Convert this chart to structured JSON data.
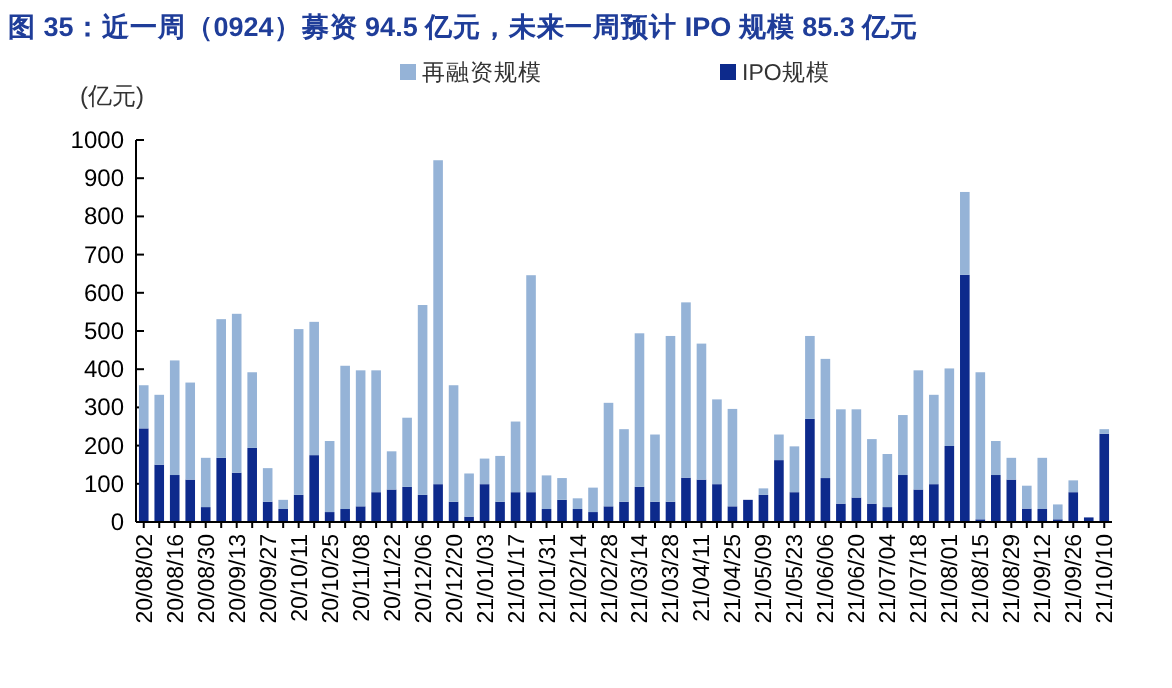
{
  "chart_data": {
    "type": "bar",
    "stacked": true,
    "title": "图 35：近一周（0924）募资 94.5 亿元，未来一周预计 IPO 规模 85.3 亿元",
    "ylabel": "(亿元)",
    "categories": [
      "20/08/02",
      null,
      "20/08/16",
      null,
      "20/08/30",
      null,
      "20/09/13",
      null,
      "20/09/27",
      null,
      "20/10/11",
      null,
      "20/10/25",
      null,
      "20/11/08",
      null,
      "20/11/22",
      null,
      "20/12/06",
      null,
      "20/12/20",
      null,
      "21/01/03",
      null,
      "21/01/17",
      null,
      "21/01/31",
      null,
      "21/02/14",
      null,
      "21/02/28",
      null,
      "21/03/14",
      null,
      "21/03/28",
      null,
      "21/04/11",
      null,
      "21/04/25",
      null,
      "21/05/09",
      null,
      "21/05/23",
      null,
      "21/06/06",
      null,
      "21/06/20",
      null,
      "21/07/04",
      null,
      "21/07/18",
      null,
      "21/08/01",
      null,
      "21/08/15",
      null,
      "21/08/29",
      null,
      "21/09/12",
      null,
      "21/09/26",
      null,
      "21/10/10"
    ],
    "series": [
      {
        "name": "IPO规模",
        "color": "#0d2a8c",
        "values": [
          245,
          150,
          123,
          111,
          39,
          168,
          129,
          194,
          53,
          34,
          71,
          175,
          26,
          34,
          41,
          78,
          85,
          92,
          71,
          99,
          53,
          14,
          99,
          53,
          78,
          78,
          34,
          58,
          34,
          26,
          41,
          53,
          92,
          53,
          53,
          116,
          111,
          99,
          41,
          58,
          71,
          162,
          78,
          270,
          115,
          48,
          64,
          48,
          39,
          123,
          85,
          99,
          199,
          647,
          7,
          123,
          111,
          35,
          34,
          7,
          78,
          12,
          231
        ]
      },
      {
        "name": "再融资规模",
        "color": "#95b3d7",
        "values": [
          113,
          183,
          300,
          254,
          129,
          363,
          416,
          198,
          88,
          24,
          434,
          349,
          186,
          375,
          356,
          319,
          100,
          181,
          497,
          848,
          305,
          113,
          67,
          120,
          185,
          568,
          88,
          57,
          28,
          64,
          271,
          190,
          402,
          176,
          434,
          459,
          356,
          222,
          255,
          0,
          17,
          67,
          120,
          217,
          312,
          247,
          231,
          169,
          139,
          157,
          312,
          234,
          203,
          217,
          385,
          89,
          57,
          60,
          134,
          39,
          31,
          null,
          12
        ]
      }
    ],
    "ylim": [
      0,
      1000
    ],
    "yticks": [
      0,
      100,
      200,
      300,
      400,
      500,
      600,
      700,
      800,
      900,
      1000
    ],
    "legend": "top",
    "grid": false
  }
}
